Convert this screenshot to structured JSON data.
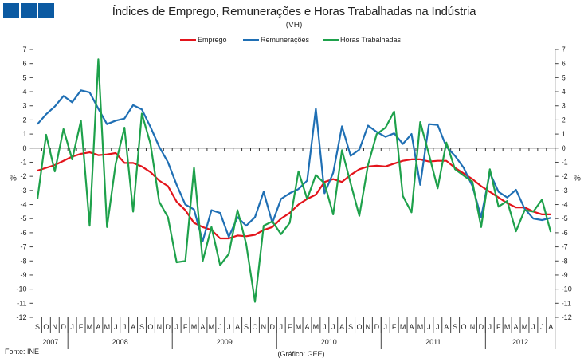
{
  "chart_data": {
    "type": "line",
    "title": "Índices de Emprego, Remunerações e Horas Trabalhadas na Indústria",
    "subtitle": "(VH)",
    "ylabel": "%",
    "ylim": [
      -12,
      7
    ],
    "yticks": [
      7,
      6,
      5,
      4,
      3,
      2,
      1,
      0,
      -1,
      -2,
      -3,
      -4,
      -5,
      -6,
      -7,
      -8,
      -9,
      -10,
      -11,
      -12
    ],
    "months": [
      "S",
      "O",
      "N",
      "D",
      "J",
      "F",
      "M",
      "A",
      "M",
      "J",
      "J",
      "A",
      "S",
      "O",
      "N",
      "D",
      "J",
      "F",
      "M",
      "A",
      "M",
      "J",
      "J",
      "A",
      "S",
      "O",
      "N",
      "D",
      "J",
      "F",
      "M",
      "A",
      "M",
      "J",
      "J",
      "A",
      "S",
      "O",
      "N",
      "D",
      "J",
      "F",
      "M",
      "A",
      "M",
      "J",
      "J",
      "A",
      "S",
      "O",
      "N",
      "D",
      "J",
      "F",
      "M",
      "A",
      "M",
      "J",
      "J",
      "A"
    ],
    "years": [
      {
        "label": "2007",
        "months": 4
      },
      {
        "label": "2008",
        "months": 12
      },
      {
        "label": "2009",
        "months": 12
      },
      {
        "label": "2010",
        "months": 12
      },
      {
        "label": "2011",
        "months": 12
      },
      {
        "label": "2012",
        "months": 8
      }
    ],
    "legend_position": "top-center",
    "series": [
      {
        "name": "Emprego",
        "color": "#e3141b",
        "values": [
          -1.6,
          -1.4,
          -1.2,
          -0.9,
          -0.6,
          -0.4,
          -0.3,
          -0.5,
          -0.45,
          -0.35,
          -1.05,
          -1.05,
          -1.3,
          -1.7,
          -2.3,
          -2.7,
          -3.8,
          -4.4,
          -5.3,
          -5.6,
          -5.8,
          -6.4,
          -6.4,
          -6.2,
          -6.25,
          -6.15,
          -5.8,
          -5.6,
          -5.0,
          -4.6,
          -4.0,
          -3.6,
          -3.3,
          -2.4,
          -2.2,
          -2.4,
          -1.9,
          -1.5,
          -1.3,
          -1.25,
          -1.3,
          -1.1,
          -0.9,
          -0.8,
          -0.8,
          -0.95,
          -0.9,
          -0.9,
          -1.4,
          -1.8,
          -2.2,
          -2.7,
          -3.1,
          -3.5,
          -3.9,
          -4.2,
          -4.2,
          -4.5,
          -4.7,
          -4.7
        ]
      },
      {
        "name": "Remunerações",
        "color": "#1f6fb4",
        "values": [
          1.7,
          2.4,
          2.95,
          3.7,
          3.25,
          4.1,
          3.95,
          2.8,
          1.7,
          1.95,
          2.1,
          3.05,
          2.75,
          1.5,
          0.1,
          -1.0,
          -2.6,
          -4.0,
          -4.35,
          -6.6,
          -4.4,
          -4.6,
          -6.3,
          -4.9,
          -5.5,
          -4.9,
          -3.1,
          -5.3,
          -3.6,
          -3.2,
          -2.9,
          -2.3,
          2.8,
          -3.2,
          -1.75,
          1.55,
          -0.55,
          -0.1,
          1.6,
          1.15,
          0.8,
          1.05,
          0.3,
          1.0,
          -2.6,
          1.7,
          1.65,
          0.1,
          -0.55,
          -1.4,
          -2.7,
          -4.9,
          -1.75,
          -3.1,
          -3.5,
          -2.95,
          -4.3,
          -5.0,
          -5.1,
          -4.95
        ]
      },
      {
        "name": "Horas Trabalhadas",
        "color": "#1ea14b",
        "values": [
          -3.6,
          0.95,
          -1.65,
          1.35,
          -0.8,
          1.95,
          -5.5,
          6.3,
          -5.6,
          -1.1,
          1.45,
          -4.5,
          2.45,
          0.3,
          -3.8,
          -4.9,
          -8.1,
          -8.0,
          -1.4,
          -8.0,
          -5.6,
          -8.3,
          -7.5,
          -4.4,
          -6.8,
          -10.9,
          -5.5,
          -5.2,
          -6.1,
          -5.3,
          -1.65,
          -3.6,
          -1.9,
          -2.5,
          -4.7,
          -0.15,
          -2.5,
          -4.8,
          -1.2,
          1.0,
          1.45,
          2.6,
          -3.4,
          -4.55,
          1.85,
          -0.45,
          -2.85,
          0.4,
          -1.5,
          -1.95,
          -2.4,
          -5.6,
          -1.5,
          -4.15,
          -3.75,
          -5.9,
          -4.4,
          -4.5,
          -3.65,
          -5.95
        ]
      }
    ]
  },
  "footer": {
    "source": "Fonte: INE",
    "credit": "(Gráfico: GEE)"
  }
}
